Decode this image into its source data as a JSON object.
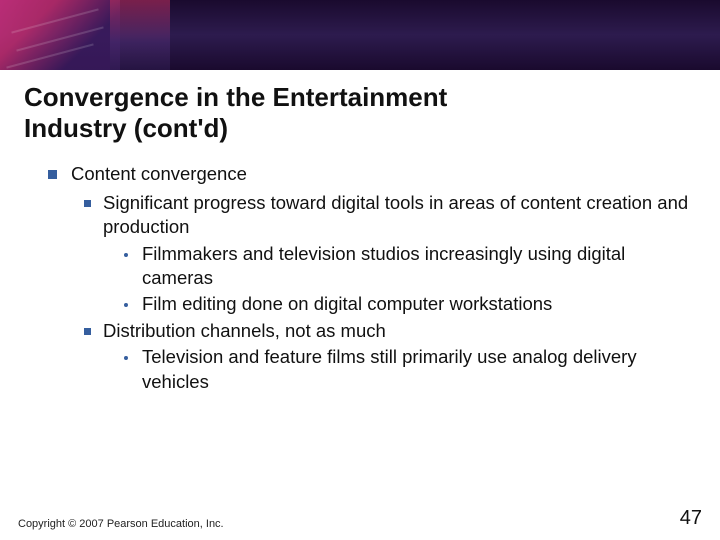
{
  "title_line1": "Convergence in the Entertainment",
  "title_line2": "Industry (cont'd)",
  "lvl1_1": "Content convergence",
  "lvl2_1": "Significant progress toward digital tools in areas of content creation and production",
  "lvl3_1": "Filmmakers and television studios increasingly using digital cameras",
  "lvl3_2": "Film editing done on digital computer workstations",
  "lvl2_2": "Distribution channels, not as much",
  "lvl3_3": "Television and feature films still primarily use analog delivery vehicles",
  "copyright": "Copyright © 2007 Pearson Education, Inc.",
  "page_number": "47",
  "colors": {
    "bullet": "#355e9e",
    "text": "#111111",
    "background": "#ffffff"
  },
  "fontsize": {
    "title": 26,
    "body": 18.5,
    "copyright": 11,
    "pagenum": 20
  }
}
